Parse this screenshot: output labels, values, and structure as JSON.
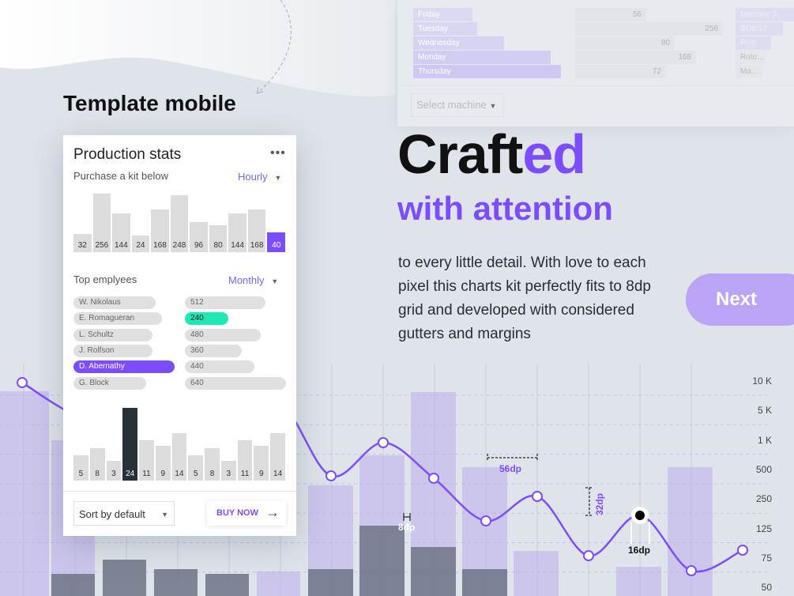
{
  "colors": {
    "accent": "#7c4dff",
    "highlight": "#1de9b6",
    "dark": "#263238"
  },
  "background_panel": {
    "rows": [
      {
        "label": "Friday",
        "value": "56"
      },
      {
        "label": "Tuesday",
        "value": "256"
      },
      {
        "label": "Wednesday",
        "value": "80"
      },
      {
        "label": "Monday",
        "value": "168"
      },
      {
        "label": "Thursday",
        "value": "72"
      }
    ],
    "tags": [
      "Machine 2",
      "BOBST",
      "PH8",
      "Roto...",
      "Ma..."
    ],
    "select_placeholder": "Select machine"
  },
  "heading": {
    "template": "Template mobile",
    "crafted_a": "Craft",
    "crafted_b": "ed",
    "attention": "with attention",
    "paragraph": "to every little detail. With love to each pixel this charts kit perfectly fits to 8dp grid and developed with considered gutters and margins",
    "next": "Next"
  },
  "card": {
    "title": "Production stats",
    "menu_icon": "more-horizontal-icon",
    "subtitle": "Purchase a kit below",
    "period": "Hourly",
    "section2": "Top emplyees",
    "period2": "Monthly",
    "sort": "Sort by default",
    "buy": "BUY NOW",
    "buy_icon": "arrow-right-icon"
  },
  "chart_data": [
    {
      "type": "bar",
      "values": [
        32,
        256,
        144,
        24,
        168,
        248,
        96,
        80,
        144,
        168,
        40
      ],
      "highlight_index": 10
    },
    {
      "type": "table",
      "rows": [
        {
          "name": "W. Nikolaus",
          "value": 512
        },
        {
          "name": "E. Romagueran",
          "value": 240
        },
        {
          "name": "L. Schultz",
          "value": 480
        },
        {
          "name": "J. Rolfson",
          "value": 360
        },
        {
          "name": "D. Abernathy",
          "value": 440
        },
        {
          "name": "G. Block",
          "value": 640
        }
      ],
      "selected_name": "D. Abernathy",
      "highlighted_value": 240
    },
    {
      "type": "bar",
      "values": [
        5,
        8,
        3,
        24,
        11,
        9,
        14,
        5,
        8,
        3,
        11,
        9,
        14
      ],
      "highlight_index": 3
    },
    {
      "type": "line",
      "y_ticks": [
        "10 K",
        "5 K",
        "1 K",
        "500",
        "250",
        "125",
        "75",
        "50"
      ],
      "annotations": [
        "56dp",
        "32dp",
        "8dp",
        "16dp"
      ]
    }
  ]
}
